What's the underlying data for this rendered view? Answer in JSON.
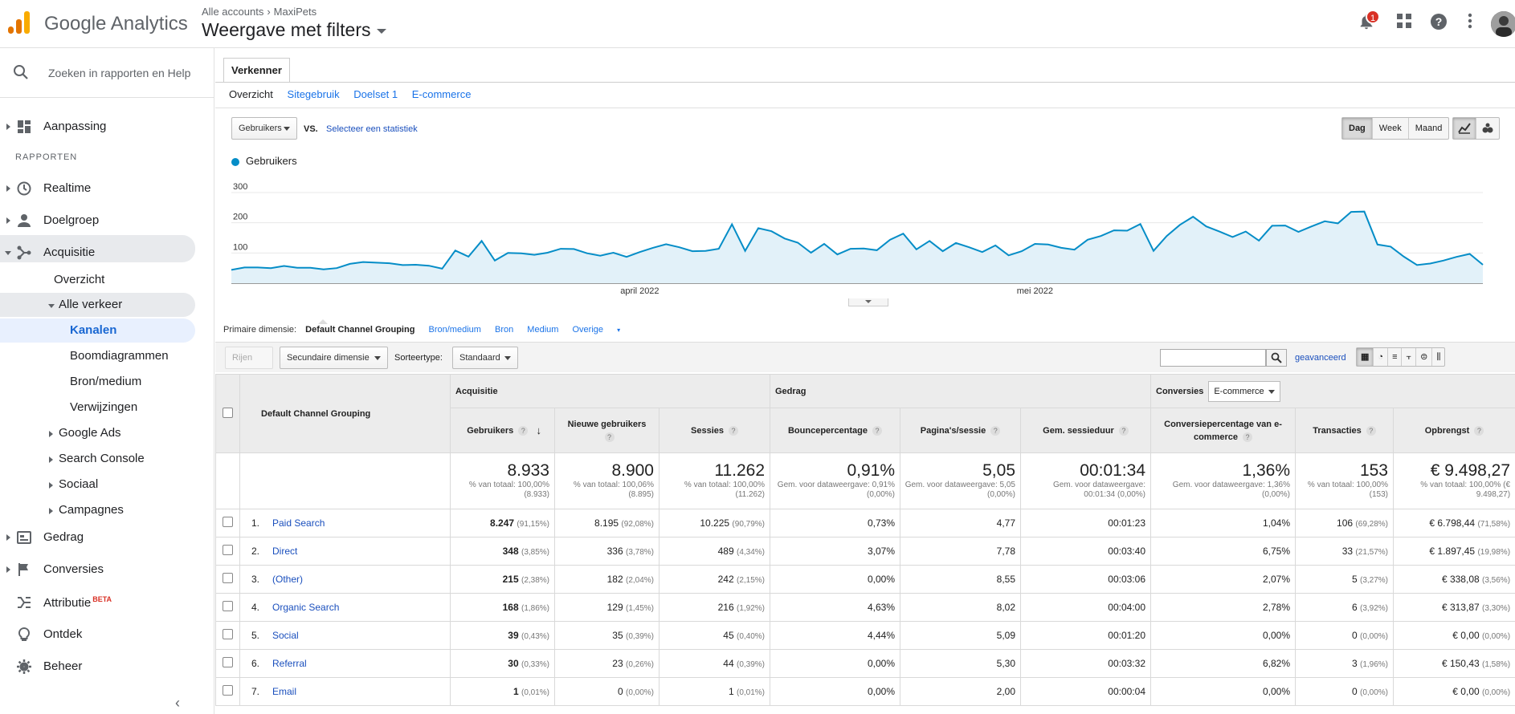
{
  "app": {
    "brand": "Google Analytics"
  },
  "header": {
    "crumb_account": "Alle accounts",
    "crumb_property": "MaxiPets",
    "view_title": "Weergave met filters",
    "notification_count": "1"
  },
  "sidebar": {
    "search_placeholder": "Zoeken in rapporten en Help",
    "customization": "Aanpassing",
    "section_reports": "RAPPORTEN",
    "realtime": "Realtime",
    "audience": "Doelgroep",
    "acquisition": "Acquisitie",
    "overview": "Overzicht",
    "all_traffic": "Alle verkeer",
    "channels": "Kanalen",
    "treemaps": "Boomdiagrammen",
    "source_medium": "Bron/medium",
    "referrals": "Verwijzingen",
    "google_ads": "Google Ads",
    "search_console": "Search Console",
    "social": "Sociaal",
    "campaigns": "Campagnes",
    "behavior": "Gedrag",
    "conversions": "Conversies",
    "attribution": "Attributie",
    "attribution_badge": "BETA",
    "discover": "Ontdek",
    "admin": "Beheer"
  },
  "explorer": {
    "tab": "Verkenner",
    "subtabs": [
      "Overzicht",
      "Sitegebruik",
      "Doelset 1",
      "E-commerce"
    ],
    "metric_select": "Gebruikers",
    "vs": "VS.",
    "select_metric_link": "Selecteer een statistiek",
    "granularity": [
      "Dag",
      "Week",
      "Maand"
    ]
  },
  "chart_data": {
    "type": "area",
    "series": [
      {
        "name": "Gebruikers",
        "values": [
          44,
          52,
          52,
          50,
          57,
          51,
          51,
          46,
          50,
          64,
          70,
          68,
          66,
          60,
          61,
          58,
          48,
          108,
          88,
          140,
          75,
          100,
          99,
          94,
          101,
          114,
          113,
          99,
          91,
          101,
          87,
          103,
          117,
          129,
          119,
          106,
          107,
          114,
          195,
          107,
          182,
          172,
          148,
          134,
          101,
          130,
          95,
          114,
          115,
          109,
          144,
          164,
          112,
          140,
          106,
          133,
          119,
          103,
          125,
          92,
          106,
          130,
          128,
          117,
          111,
          144,
          156,
          175,
          174,
          196,
          107,
          156,
          193,
          220,
          188,
          171,
          153,
          171,
          141,
          190,
          191,
          170,
          188,
          205,
          198,
          236,
          237,
          128,
          121,
          88,
          60,
          65,
          75,
          87,
          97,
          61
        ],
        "tick_labels": [
          "april 2022",
          "mei 2022"
        ]
      }
    ],
    "y_ticks": [
      100,
      200,
      300
    ],
    "ylim": [
      0,
      300
    ],
    "color": "#058dc7"
  },
  "primary_dimension": {
    "label": "Primaire dimensie:",
    "options": [
      "Default Channel Grouping",
      "Bron/medium",
      "Bron",
      "Medium",
      "Overige"
    ]
  },
  "controls": {
    "show_rows": "Rijen tonen",
    "secondary_dimension": "Secundaire dimensie",
    "sort_label": "Sorteertype:",
    "sort_value": "Standaard",
    "advanced": "geavanceerd"
  },
  "table": {
    "dimension_header": "Default Channel Grouping",
    "group_acq": "Acquisitie",
    "group_beh": "Gedrag",
    "group_conv": "Conversies",
    "conv_select": "E-commerce",
    "columns": [
      "Gebruikers",
      "Nieuwe gebruikers",
      "Sessies",
      "Bouncepercentage",
      "Pagina's/sessie",
      "Gem. sessieduur",
      "Conversiepercentage van e-commerce",
      "Transacties",
      "Opbrengst"
    ],
    "totals": [
      {
        "big": "8.933",
        "sub": "% van totaal: 100,00% (8.933)"
      },
      {
        "big": "8.900",
        "sub": "% van totaal: 100,06% (8.895)"
      },
      {
        "big": "11.262",
        "sub": "% van totaal: 100,00% (11.262)"
      },
      {
        "big": "0,91%",
        "sub": "Gem. voor dataweergave: 0,91% (0,00%)"
      },
      {
        "big": "5,05",
        "sub": "Gem. voor dataweergave: 5,05 (0,00%)"
      },
      {
        "big": "00:01:34",
        "sub": "Gem. voor dataweergave: 00:01:34 (0,00%)"
      },
      {
        "big": "1,36%",
        "sub": "Gem. voor dataweergave: 1,36% (0,00%)"
      },
      {
        "big": "153",
        "sub": "% van totaal: 100,00% (153)"
      },
      {
        "big": "€ 9.498,27",
        "sub": "% van totaal: 100,00% (€ 9.498,27)"
      }
    ],
    "rows": [
      {
        "idx": "1.",
        "name": "Paid Search",
        "users": "8.247",
        "users_p": "(91,15%)",
        "new": "8.195",
        "new_p": "(92,08%)",
        "sess": "10.225",
        "sess_p": "(90,79%)",
        "bounce": "0,73%",
        "pps": "4,77",
        "dur": "00:01:23",
        "conv": "1,04%",
        "tx": "106",
        "tx_p": "(69,28%)",
        "rev": "€ 6.798,44",
        "rev_p": "(71,58%)"
      },
      {
        "idx": "2.",
        "name": "Direct",
        "users": "348",
        "users_p": "(3,85%)",
        "new": "336",
        "new_p": "(3,78%)",
        "sess": "489",
        "sess_p": "(4,34%)",
        "bounce": "3,07%",
        "pps": "7,78",
        "dur": "00:03:40",
        "conv": "6,75%",
        "tx": "33",
        "tx_p": "(21,57%)",
        "rev": "€ 1.897,45",
        "rev_p": "(19,98%)"
      },
      {
        "idx": "3.",
        "name": "(Other)",
        "users": "215",
        "users_p": "(2,38%)",
        "new": "182",
        "new_p": "(2,04%)",
        "sess": "242",
        "sess_p": "(2,15%)",
        "bounce": "0,00%",
        "pps": "8,55",
        "dur": "00:03:06",
        "conv": "2,07%",
        "tx": "5",
        "tx_p": "(3,27%)",
        "rev": "€ 338,08",
        "rev_p": "(3,56%)"
      },
      {
        "idx": "4.",
        "name": "Organic Search",
        "users": "168",
        "users_p": "(1,86%)",
        "new": "129",
        "new_p": "(1,45%)",
        "sess": "216",
        "sess_p": "(1,92%)",
        "bounce": "4,63%",
        "pps": "8,02",
        "dur": "00:04:00",
        "conv": "2,78%",
        "tx": "6",
        "tx_p": "(3,92%)",
        "rev": "€ 313,87",
        "rev_p": "(3,30%)"
      },
      {
        "idx": "5.",
        "name": "Social",
        "users": "39",
        "users_p": "(0,43%)",
        "new": "35",
        "new_p": "(0,39%)",
        "sess": "45",
        "sess_p": "(0,40%)",
        "bounce": "4,44%",
        "pps": "5,09",
        "dur": "00:01:20",
        "conv": "0,00%",
        "tx": "0",
        "tx_p": "(0,00%)",
        "rev": "€ 0,00",
        "rev_p": "(0,00%)"
      },
      {
        "idx": "6.",
        "name": "Referral",
        "users": "30",
        "users_p": "(0,33%)",
        "new": "23",
        "new_p": "(0,26%)",
        "sess": "44",
        "sess_p": "(0,39%)",
        "bounce": "0,00%",
        "pps": "5,30",
        "dur": "00:03:32",
        "conv": "6,82%",
        "tx": "3",
        "tx_p": "(1,96%)",
        "rev": "€ 150,43",
        "rev_p": "(1,58%)"
      },
      {
        "idx": "7.",
        "name": "Email",
        "users": "1",
        "users_p": "(0,01%)",
        "new": "0",
        "new_p": "(0,00%)",
        "sess": "1",
        "sess_p": "(0,01%)",
        "bounce": "0,00%",
        "pps": "2,00",
        "dur": "00:00:04",
        "conv": "0,00%",
        "tx": "0",
        "tx_p": "(0,00%)",
        "rev": "€ 0,00",
        "rev_p": "(0,00%)"
      }
    ]
  }
}
